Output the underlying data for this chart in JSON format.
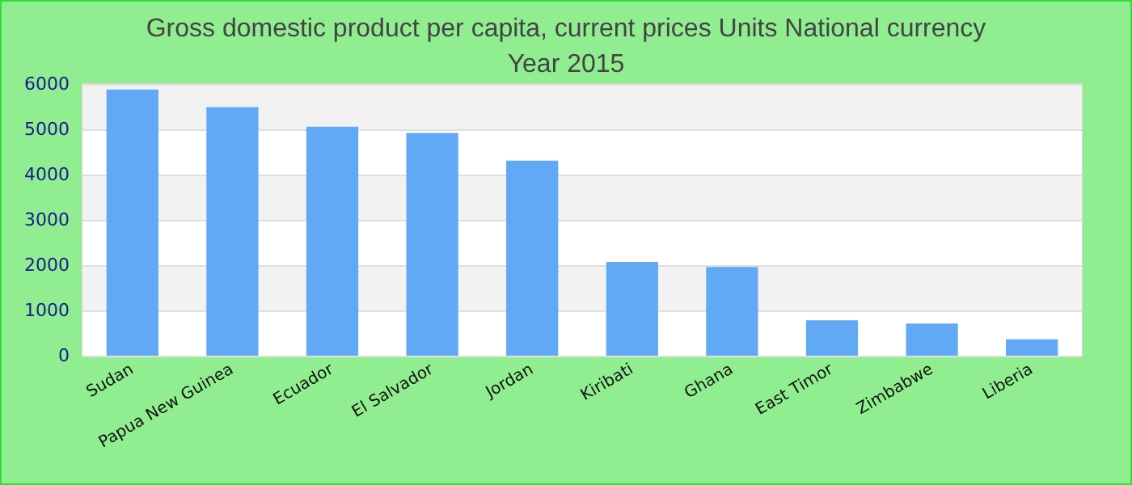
{
  "chart_data": {
    "type": "bar",
    "title": "Gross domestic product per capita, current prices Units National currency",
    "subtitle": "Year 2015",
    "categories": [
      "Sudan",
      "Papua New Guinea",
      "Ecuador",
      "El Salvador",
      "Jordan",
      "Kiribati",
      "Ghana",
      "East Timor",
      "Zimbabwe",
      "Liberia"
    ],
    "values": [
      5880,
      5490,
      5060,
      4920,
      4310,
      2070,
      1960,
      780,
      710,
      360
    ],
    "color": "#61a8f5",
    "ylim": [
      0,
      6000
    ],
    "yticks": [
      0,
      1000,
      2000,
      3000,
      4000,
      5000,
      6000
    ],
    "grid": "y"
  }
}
